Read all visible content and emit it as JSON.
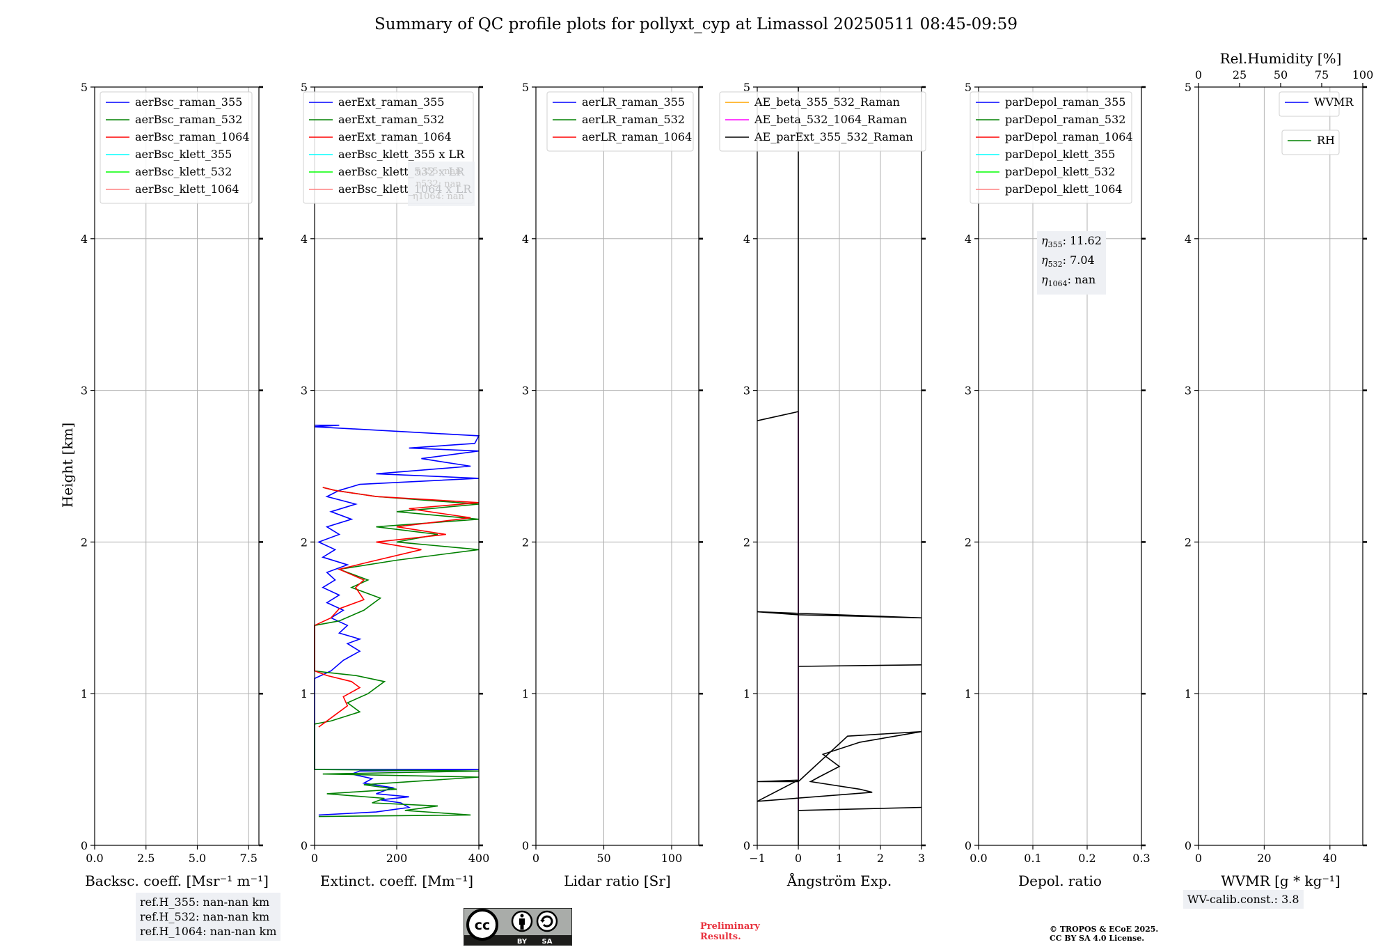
{
  "title": "Summary of QC profile plots for pollyxt_cyp at Limassol 20250511 08:45-09:59",
  "ylabel": "Height [km]",
  "chart_data": [
    {
      "type": "line",
      "xlabel": "Backsc. coeff. [Msr⁻¹ m⁻¹]",
      "xlim": [
        0,
        8
      ],
      "xticks": [
        0,
        2.5,
        5,
        7.5
      ],
      "xtick_labels": [
        "0.0",
        "2.5",
        "5.0",
        "7.5"
      ],
      "ylim": [
        0,
        5
      ],
      "yticks": [
        0,
        1,
        2,
        3,
        4,
        5
      ],
      "grid": true,
      "legend": [
        {
          "label": "aerBsc_raman_355",
          "color": "#0000ff"
        },
        {
          "label": "aerBsc_raman_532",
          "color": "#008000"
        },
        {
          "label": "aerBsc_raman_1064",
          "color": "#ff0000"
        },
        {
          "label": "aerBsc_klett_355",
          "color": "#00ffff"
        },
        {
          "label": "aerBsc_klett_532",
          "color": "#00ff00"
        },
        {
          "label": "aerBsc_klett_1064",
          "color": "#ff8080"
        }
      ],
      "series": []
    },
    {
      "type": "line",
      "xlabel": "Extinct. coeff. [Mm⁻¹]",
      "xlim": [
        0,
        400
      ],
      "xticks": [
        0,
        200,
        400
      ],
      "xtick_labels": [
        "0",
        "200",
        "400"
      ],
      "ylim": [
        0,
        5
      ],
      "yticks": [
        0,
        1,
        2,
        3,
        4,
        5
      ],
      "grid": true,
      "legend": [
        {
          "label": "aerExt_raman_355",
          "color": "#0000ff"
        },
        {
          "label": "aerExt_raman_532",
          "color": "#008000"
        },
        {
          "label": "aerExt_raman_1064",
          "color": "#ff0000"
        },
        {
          "label": "aerBsc_klett_355 x LR",
          "color": "#00ffff"
        },
        {
          "label": "aerBsc_klett_532 x LR",
          "color": "#00ff00"
        },
        {
          "label": "aerBsc_klett_1064 x LR",
          "color": "#ff8080"
        }
      ],
      "series": [
        {
          "name": "aerExt_raman_355",
          "color": "#0000ff",
          "points": [
            [
              10,
              0.2
            ],
            [
              150,
              0.22
            ],
            [
              230,
              0.25
            ],
            [
              210,
              0.28
            ],
            [
              160,
              0.3
            ],
            [
              230,
              0.32
            ],
            [
              150,
              0.34
            ],
            [
              190,
              0.38
            ],
            [
              120,
              0.41
            ],
            [
              140,
              0.44
            ],
            [
              90,
              0.47
            ],
            [
              110,
              0.49
            ],
            [
              400,
              0.5
            ],
            [
              0,
              0.5
            ],
            [
              0,
              1.1
            ],
            [
              40,
              1.15
            ],
            [
              70,
              1.22
            ],
            [
              110,
              1.28
            ],
            [
              80,
              1.33
            ],
            [
              110,
              1.36
            ],
            [
              60,
              1.4
            ],
            [
              80,
              1.45
            ],
            [
              40,
              1.5
            ],
            [
              70,
              1.55
            ],
            [
              30,
              1.6
            ],
            [
              60,
              1.65
            ],
            [
              20,
              1.7
            ],
            [
              50,
              1.75
            ],
            [
              30,
              1.8
            ],
            [
              80,
              1.85
            ],
            [
              20,
              1.9
            ],
            [
              50,
              1.95
            ],
            [
              10,
              2.0
            ],
            [
              60,
              2.05
            ],
            [
              30,
              2.1
            ],
            [
              90,
              2.15
            ],
            [
              40,
              2.2
            ],
            [
              100,
              2.25
            ],
            [
              30,
              2.3
            ],
            [
              60,
              2.34
            ],
            [
              110,
              2.38
            ],
            [
              400,
              2.42
            ],
            [
              150,
              2.45
            ],
            [
              380,
              2.5
            ],
            [
              260,
              2.55
            ],
            [
              400,
              2.6
            ],
            [
              230,
              2.62
            ],
            [
              390,
              2.65
            ],
            [
              400,
              2.7
            ],
            [
              0,
              2.76
            ],
            [
              60,
              2.77
            ],
            [
              0,
              2.77
            ]
          ]
        },
        {
          "name": "aerExt_raman_532",
          "color": "#008000",
          "points": [
            [
              10,
              0.19
            ],
            [
              380,
              0.2
            ],
            [
              220,
              0.23
            ],
            [
              300,
              0.26
            ],
            [
              140,
              0.28
            ],
            [
              170,
              0.31
            ],
            [
              30,
              0.34
            ],
            [
              200,
              0.37
            ],
            [
              120,
              0.4
            ],
            [
              400,
              0.45
            ],
            [
              20,
              0.47
            ],
            [
              400,
              0.49
            ],
            [
              0,
              0.5
            ],
            [
              0,
              0.8
            ],
            [
              40,
              0.82
            ],
            [
              110,
              0.88
            ],
            [
              80,
              0.94
            ],
            [
              130,
              1.0
            ],
            [
              170,
              1.08
            ],
            [
              100,
              1.12
            ],
            [
              30,
              1.14
            ],
            [
              0,
              1.15
            ],
            [
              0,
              1.45
            ],
            [
              60,
              1.48
            ],
            [
              120,
              1.55
            ],
            [
              160,
              1.63
            ],
            [
              90,
              1.7
            ],
            [
              130,
              1.75
            ],
            [
              60,
              1.82
            ],
            [
              200,
              1.88
            ],
            [
              400,
              1.95
            ],
            [
              200,
              2.0
            ],
            [
              300,
              2.05
            ],
            [
              150,
              2.1
            ],
            [
              400,
              2.15
            ],
            [
              200,
              2.2
            ],
            [
              400,
              2.25
            ],
            [
              150,
              2.3
            ],
            [
              50,
              2.34
            ],
            [
              20,
              2.36
            ]
          ]
        },
        {
          "name": "aerExt_raman_1064",
          "color": "#ff0000",
          "points": [
            [
              10,
              0.78
            ],
            [
              50,
              0.86
            ],
            [
              80,
              0.92
            ],
            [
              70,
              0.98
            ],
            [
              110,
              1.04
            ],
            [
              90,
              1.08
            ],
            [
              30,
              1.12
            ],
            [
              0,
              1.15
            ],
            [
              0,
              1.45
            ],
            [
              40,
              1.5
            ],
            [
              60,
              1.56
            ],
            [
              120,
              1.62
            ],
            [
              100,
              1.7
            ],
            [
              120,
              1.75
            ],
            [
              60,
              1.82
            ],
            [
              120,
              1.86
            ],
            [
              260,
              1.95
            ],
            [
              150,
              2.0
            ],
            [
              320,
              2.05
            ],
            [
              200,
              2.1
            ],
            [
              380,
              2.16
            ],
            [
              230,
              2.22
            ],
            [
              400,
              2.26
            ],
            [
              150,
              2.3
            ],
            [
              50,
              2.34
            ],
            [
              20,
              2.36
            ]
          ]
        }
      ],
      "hidden_legend_text": [
        "η355: nan",
        "η532: nan",
        "η1064: nan"
      ]
    },
    {
      "type": "line",
      "xlabel": "Lidar ratio [Sr]",
      "xlim": [
        0,
        120
      ],
      "xticks": [
        0,
        50,
        100
      ],
      "xtick_labels": [
        "0",
        "50",
        "100"
      ],
      "ylim": [
        0,
        5
      ],
      "yticks": [
        0,
        1,
        2,
        3,
        4,
        5
      ],
      "grid": true,
      "legend": [
        {
          "label": "aerLR_raman_355",
          "color": "#0000ff"
        },
        {
          "label": "aerLR_raman_532",
          "color": "#008000"
        },
        {
          "label": "aerLR_raman_1064",
          "color": "#ff0000"
        }
      ],
      "series": []
    },
    {
      "type": "line",
      "xlabel": "Ångström Exp.",
      "xlim": [
        -1,
        3
      ],
      "xticks": [
        -1,
        0,
        1,
        2,
        3
      ],
      "xtick_labels": [
        "−1",
        "0",
        "1",
        "2",
        "3"
      ],
      "ylim": [
        0,
        5
      ],
      "yticks": [
        0,
        1,
        2,
        3,
        4,
        5
      ],
      "grid": true,
      "legend": [
        {
          "label": "AE_beta_355_532_Raman",
          "color": "#ffa500"
        },
        {
          "label": "AE_beta_532_1064_Raman",
          "color": "#ff00ff"
        },
        {
          "label": "AE_parExt_355_532_Raman",
          "color": "#000000"
        }
      ],
      "series": [
        {
          "name": "AE_beta_532_1064_Raman",
          "color": "#ff00ff",
          "points": [
            [
              0,
              0.23
            ],
            [
              0,
              2.86
            ]
          ]
        },
        {
          "name": "AE_parExt_355_532_Raman",
          "color": "#000000",
          "points": [
            [
              0,
              0
            ],
            [
              0,
              0.23
            ],
            [
              3,
              0.25
            ],
            [
              0,
              0.23
            ],
            [
              0,
              0.42
            ],
            [
              -1,
              0.42
            ],
            [
              0,
              0.43
            ],
            [
              -1,
              0.29
            ],
            [
              1.8,
              0.35
            ],
            [
              1.5,
              0.37
            ],
            [
              0.3,
              0.42
            ],
            [
              0.5,
              0.45
            ],
            [
              1.0,
              0.52
            ],
            [
              0.6,
              0.6
            ],
            [
              1.5,
              0.68
            ],
            [
              3,
              0.75
            ],
            [
              1.2,
              0.72
            ],
            [
              0,
              0.42
            ],
            [
              0,
              1.18
            ],
            [
              3,
              1.19
            ],
            [
              0,
              1.18
            ],
            [
              0,
              1.52
            ],
            [
              -1,
              1.54
            ],
            [
              3,
              1.5
            ],
            [
              0,
              1.52
            ],
            [
              0,
              2.86
            ],
            [
              -1,
              2.8
            ],
            [
              0,
              2.86
            ],
            [
              0,
              5
            ]
          ]
        }
      ]
    },
    {
      "type": "line",
      "xlabel": "Depol. ratio",
      "xlim": [
        0,
        0.3
      ],
      "xticks": [
        0,
        0.1,
        0.2,
        0.3
      ],
      "xtick_labels": [
        "0.0",
        "0.1",
        "0.2",
        "0.3"
      ],
      "ylim": [
        0,
        5
      ],
      "yticks": [
        0,
        1,
        2,
        3,
        4,
        5
      ],
      "grid": true,
      "legend": [
        {
          "label": "parDepol_raman_355",
          "color": "#0000ff"
        },
        {
          "label": "parDepol_raman_532",
          "color": "#008000"
        },
        {
          "label": "parDepol_raman_1064",
          "color": "#ff0000"
        },
        {
          "label": "parDepol_klett_355",
          "color": "#00ffff"
        },
        {
          "label": "parDepol_klett_532",
          "color": "#00ff00"
        },
        {
          "label": "parDepol_klett_1064",
          "color": "#ff8080"
        }
      ],
      "series": [],
      "eta_box": {
        "items": [
          {
            "sub": "355",
            "value": ": 11.62"
          },
          {
            "sub": "532",
            "value": ": 7.04"
          },
          {
            "sub": "1064",
            "value": ": nan"
          }
        ]
      }
    },
    {
      "type": "line",
      "xlabel": "WVMR [g * kg⁻¹]",
      "xlim": [
        0,
        50
      ],
      "xticks": [
        0,
        20,
        40
      ],
      "xtick_labels": [
        "0",
        "20",
        "40"
      ],
      "top_xlabel": "Rel.Humidity [%]",
      "top_xlim": [
        0,
        100
      ],
      "top_xticks": [
        0,
        25,
        50,
        75,
        100
      ],
      "top_xtick_labels": [
        "0",
        "25",
        "50",
        "75",
        "100"
      ],
      "ylim": [
        0,
        5
      ],
      "yticks": [
        0,
        1,
        2,
        3,
        4,
        5
      ],
      "grid": true,
      "legend": [
        {
          "label": "WVMR",
          "color": "#0000ff"
        }
      ],
      "legend2": [
        {
          "label": "RH",
          "color": "#008000"
        }
      ],
      "series": []
    }
  ],
  "ref_box": [
    "ref.H_355: nan-nan km",
    "ref.H_532: nan-nan km",
    "ref.H_1064: nan-nan km"
  ],
  "wv_box": "WV-calib.const.: 3.8",
  "cc_label": {
    "by": "BY",
    "sa": "SA"
  },
  "preliminary": [
    "Preliminary",
    "Results."
  ],
  "copyright": [
    "© TROPOS & ECoE 2025.",
    "CC BY SA 4.0 License."
  ]
}
